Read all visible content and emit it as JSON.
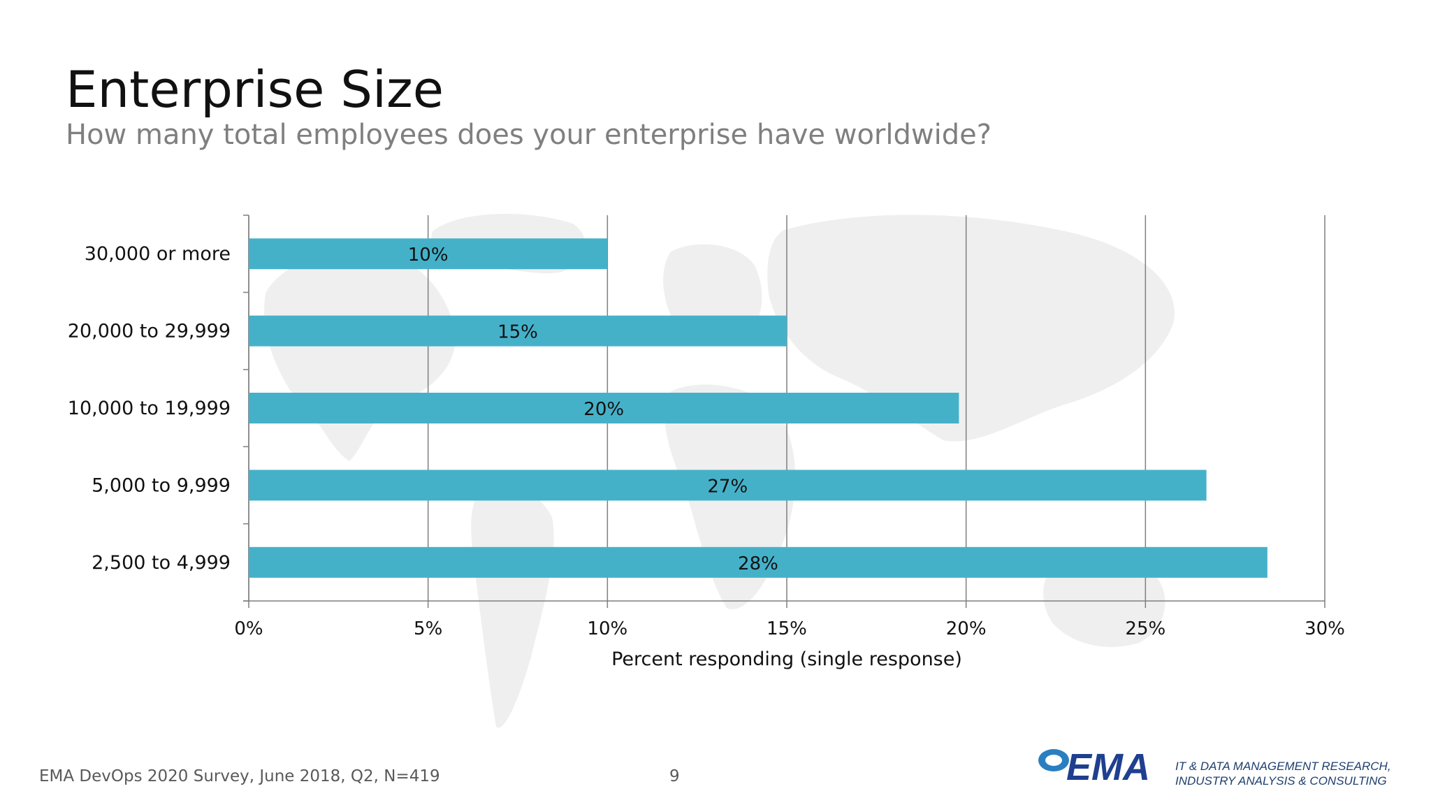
{
  "page": {
    "title": "Enterprise Size",
    "subtitle": "How many total employees does your enterprise have worldwide?",
    "footer_source": "EMA DevOps 2020 Survey, June 2018, Q2, N=419",
    "page_number": "9"
  },
  "logo": {
    "text": "EMA",
    "tagline_line1": "IT & DATA MANAGEMENT RESEARCH,",
    "tagline_line2": "INDUSTRY ANALYSIS & CONSULTING"
  },
  "colors": {
    "bar": "#45b1c9",
    "grid": "#7f7f7f",
    "map": "#eeeeee"
  },
  "chart_data": {
    "type": "bar",
    "orientation": "horizontal",
    "title": "Enterprise Size",
    "xlabel": "Percent responding (single response)",
    "ylabel": "",
    "xlim": [
      0,
      30
    ],
    "x_ticks": [
      0,
      5,
      10,
      15,
      20,
      25,
      30
    ],
    "x_tick_labels": [
      "0%",
      "5%",
      "10%",
      "15%",
      "20%",
      "25%",
      "30%"
    ],
    "grid": true,
    "categories": [
      "30,000 or more",
      "20,000 to 29,999",
      "10,000 to 19,999",
      "5,000 to 9,999",
      "2,500 to 4,999"
    ],
    "values": [
      10,
      15,
      19.8,
      26.7,
      28.4
    ],
    "data_labels": [
      "10%",
      "15%",
      "20%",
      "27%",
      "28%"
    ]
  }
}
